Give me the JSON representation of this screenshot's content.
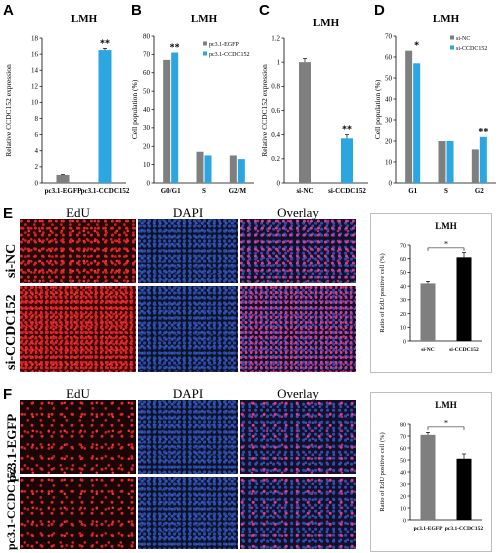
{
  "panels": {
    "A": {
      "letter": "A"
    },
    "B": {
      "letter": "B"
    },
    "C": {
      "letter": "C"
    },
    "D": {
      "letter": "D"
    },
    "E": {
      "letter": "E"
    },
    "F": {
      "letter": "F"
    }
  },
  "microscopy": {
    "col_labels": [
      "EdU",
      "DAPI",
      "Overlay"
    ],
    "E_rows": [
      "si-NC",
      "si-CCDC152"
    ],
    "F_rows": [
      "pc3.1-EGFP",
      "pc3.1-CCDC152"
    ]
  },
  "colors": {
    "blue": "#2ba6e0",
    "gray": "#7f7f7f",
    "black": "#000000"
  },
  "chart_data": [
    {
      "id": "A",
      "type": "bar",
      "title": "LMH",
      "ylabel": "Relative CCDC152 expression",
      "categories": [
        "pc3.1-EGFP",
        "pc3.1-CCDC152"
      ],
      "values": [
        1.0,
        16.5
      ],
      "errors": [
        0.05,
        0.2
      ],
      "colors": [
        "#7f7f7f",
        "#2ba6e0"
      ],
      "annotations": [
        "",
        "**"
      ],
      "ylim": [
        0,
        18
      ],
      "yticks": [
        0,
        2,
        4,
        6,
        8,
        10,
        12,
        14,
        16,
        18
      ]
    },
    {
      "id": "B",
      "type": "bar",
      "title": "LMH",
      "ylabel": "Cell population (%)",
      "categories": [
        "G0/G1",
        "S",
        "G2/M"
      ],
      "series": [
        {
          "name": "pc3.1-EGFP",
          "values": [
            67,
            17,
            15
          ],
          "color": "#7f7f7f"
        },
        {
          "name": "pc3.1-CCDC152",
          "values": [
            71,
            15,
            13
          ],
          "color": "#2ba6e0"
        }
      ],
      "annotations": [
        "**",
        "",
        ""
      ],
      "ylim": [
        0,
        80
      ],
      "yticks": [
        0,
        10,
        20,
        30,
        40,
        50,
        60,
        70,
        80
      ],
      "legend_position": "top-right"
    },
    {
      "id": "C",
      "type": "bar",
      "title": "LMH",
      "ylabel": "Relative CCDC152 expression",
      "categories": [
        "si-NC",
        "si-CCDC152"
      ],
      "values": [
        1.0,
        0.37
      ],
      "errors": [
        0.03,
        0.03
      ],
      "colors": [
        "#7f7f7f",
        "#2ba6e0"
      ],
      "annotations": [
        "",
        "**"
      ],
      "ylim": [
        0,
        1.2
      ],
      "yticks": [
        0,
        0.2,
        0.4,
        0.6,
        0.8,
        1,
        1.2
      ]
    },
    {
      "id": "D",
      "type": "bar",
      "title": "LMH",
      "ylabel": "Cell population (%)",
      "categories": [
        "G1",
        "S",
        "G2"
      ],
      "series": [
        {
          "name": "si-NC",
          "values": [
            63,
            20,
            16
          ],
          "color": "#7f7f7f"
        },
        {
          "name": "si-CCDC152",
          "values": [
            57,
            20,
            22
          ],
          "color": "#2ba6e0"
        }
      ],
      "annotations": [
        "*",
        "",
        "**"
      ],
      "ylim": [
        0,
        70
      ],
      "yticks": [
        0,
        10,
        20,
        30,
        40,
        50,
        60,
        70
      ],
      "legend_position": "top-right"
    },
    {
      "id": "E",
      "type": "bar",
      "title": "LMH",
      "ylabel": "Ratio of EdU positive cell (%)",
      "categories": [
        "si-NC",
        "si-CCDC152"
      ],
      "values": [
        42,
        61
      ],
      "errors": [
        1.5,
        3.5
      ],
      "colors": [
        "#7f7f7f",
        "#000000"
      ],
      "significance": "*",
      "ylim": [
        0,
        70
      ],
      "yticks": [
        0,
        10,
        20,
        30,
        40,
        50,
        60,
        70
      ]
    },
    {
      "id": "F",
      "type": "bar",
      "title": "LMH",
      "ylabel": "Ratio of EdU positive cell (%)",
      "categories": [
        "pc3.1-EGFP",
        "pc3.1-CCDC152"
      ],
      "values": [
        71,
        51
      ],
      "errors": [
        2.0,
        4.0
      ],
      "colors": [
        "#7f7f7f",
        "#000000"
      ],
      "significance": "*",
      "ylim": [
        0,
        80
      ],
      "yticks": [
        0,
        10,
        20,
        30,
        40,
        50,
        60,
        70,
        80
      ]
    }
  ]
}
